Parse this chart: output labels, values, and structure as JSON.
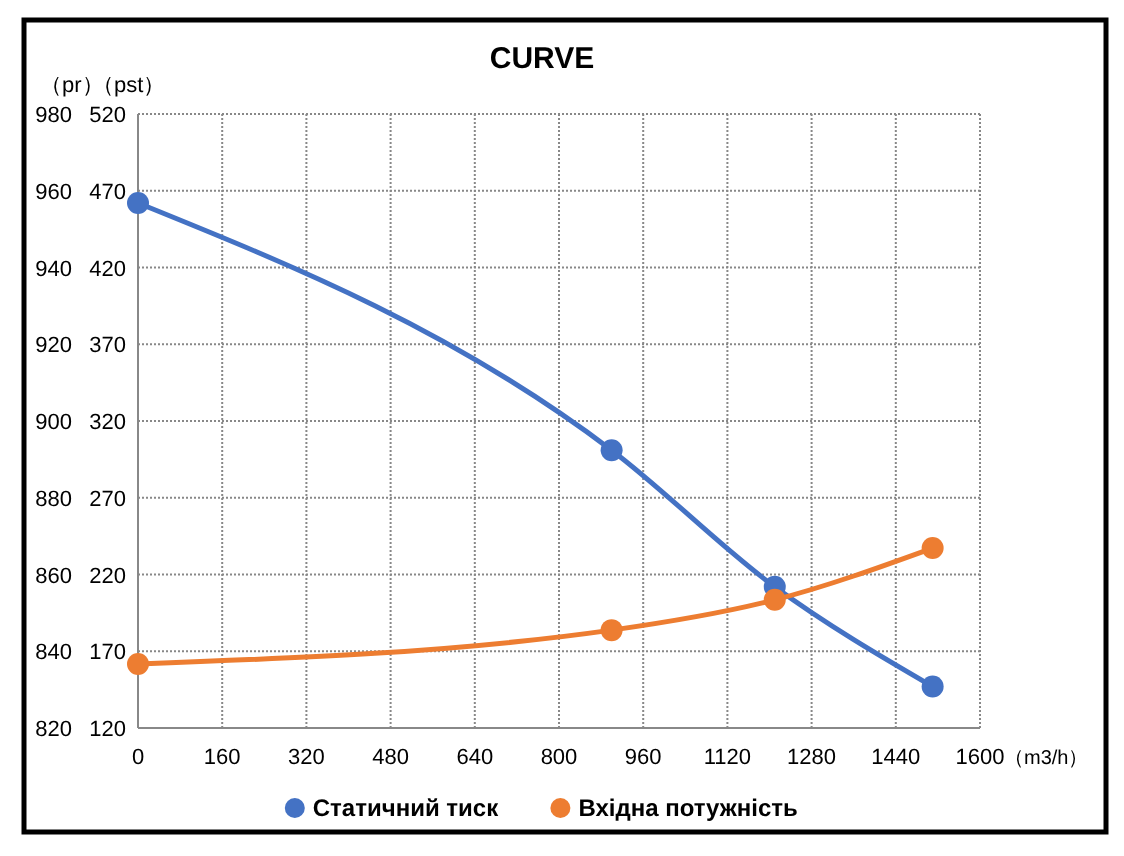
{
  "chart_data": {
    "type": "line",
    "title": "CURVE",
    "xlabel": "（m3/h）",
    "ylabel": "（pst）",
    "y2label": "（pr）",
    "x": [
      0,
      900,
      1210,
      1510
    ],
    "series": [
      {
        "name": "Статичний тиск",
        "color": "#4472c4",
        "values": [
          462,
          301,
          212,
          147
        ]
      },
      {
        "name": "Вхідна потужність",
        "color": "#ed7d31",
        "values": [
          836.7,
          845.5,
          853.4,
          866.9
        ],
        "axis": "y2"
      }
    ],
    "xlim": [
      0,
      1600
    ],
    "xticks": [
      0,
      160,
      320,
      480,
      640,
      800,
      960,
      1120,
      1280,
      1440,
      1600
    ],
    "ylim": [
      120,
      520
    ],
    "yticks": [
      120,
      170,
      220,
      270,
      320,
      370,
      420,
      470,
      520
    ],
    "y2lim": [
      820,
      980
    ],
    "y2ticks": [
      820,
      840,
      860,
      880,
      900,
      920,
      940,
      960,
      980
    ],
    "grid": true,
    "legend": "bottom",
    "marker": "circle",
    "line_style": "solid"
  }
}
